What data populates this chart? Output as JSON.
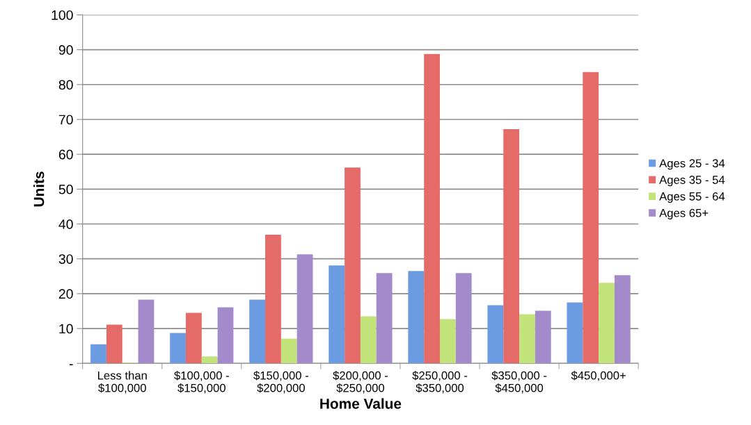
{
  "chart_data": {
    "type": "bar",
    "xlabel": "Home Value",
    "ylabel": "Units",
    "categories": [
      "Less than\n$100,000",
      "$100,000 -\n$150,000",
      "$150,000 -\n$200,000",
      "$200,000 -\n$250,000",
      "$250,000 -\n$350,000",
      "$350,000 -\n$450,000",
      "$450,000+"
    ],
    "series": [
      {
        "name": "Ages 25 - 34",
        "color": "#6b9be0",
        "values": [
          5.5,
          8.7,
          18.3,
          28.1,
          26.5,
          16.7,
          17.5
        ]
      },
      {
        "name": "Ages 35 - 54",
        "color": "#e56b68",
        "values": [
          11.1,
          14.5,
          36.9,
          56.2,
          88.8,
          67.2,
          83.6
        ]
      },
      {
        "name": "Ages 55 - 64",
        "color": "#c2e27a",
        "values": [
          0.2,
          2.0,
          7.1,
          13.5,
          12.7,
          14.1,
          23.1
        ]
      },
      {
        "name": "Ages 65+",
        "color": "#a38bcb",
        "values": [
          18.3,
          16.1,
          31.3,
          25.9,
          25.9,
          15.1,
          25.3
        ]
      }
    ],
    "ylim": [
      0,
      100
    ],
    "yticks": [
      {
        "value": 0,
        "label": "-"
      },
      10,
      20,
      30,
      40,
      50,
      60,
      70,
      80,
      90,
      100
    ],
    "grid": "y",
    "legend": "right"
  }
}
